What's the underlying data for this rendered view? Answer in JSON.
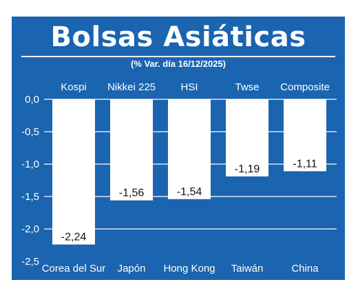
{
  "title": "Bolsas Asiáticas",
  "subtitle": "(% Var. día  16/12/2025)",
  "colors": {
    "panel": "#1a64b0",
    "bar": "#ffffff",
    "text": "#ffffff",
    "label": "#111111"
  },
  "chart_data": {
    "type": "bar",
    "title": "Bolsas Asiáticas",
    "subtitle": "(% Var. día  16/12/2025)",
    "indices": [
      "Kospi",
      "Nikkei 225",
      "HSI",
      "Twse",
      "Composite"
    ],
    "categories": [
      "Corea del Sur",
      "Japón",
      "Hong Kong",
      "Taiwán",
      "China"
    ],
    "values": [
      -2.24,
      -1.56,
      -1.54,
      -1.19,
      -1.11
    ],
    "value_labels": [
      "-2,24",
      "-1,56",
      "-1,54",
      "-1,19",
      "-1,11"
    ],
    "yticks": [
      0,
      -0.5,
      -1,
      -1.5,
      -2,
      -2.5
    ],
    "ytick_labels": [
      "0,0",
      "-0,5",
      "-1,0",
      "-1,5",
      "-2,0",
      "-2,5"
    ],
    "ylim": [
      -2.5,
      0
    ],
    "grid": true,
    "legend": "none"
  }
}
